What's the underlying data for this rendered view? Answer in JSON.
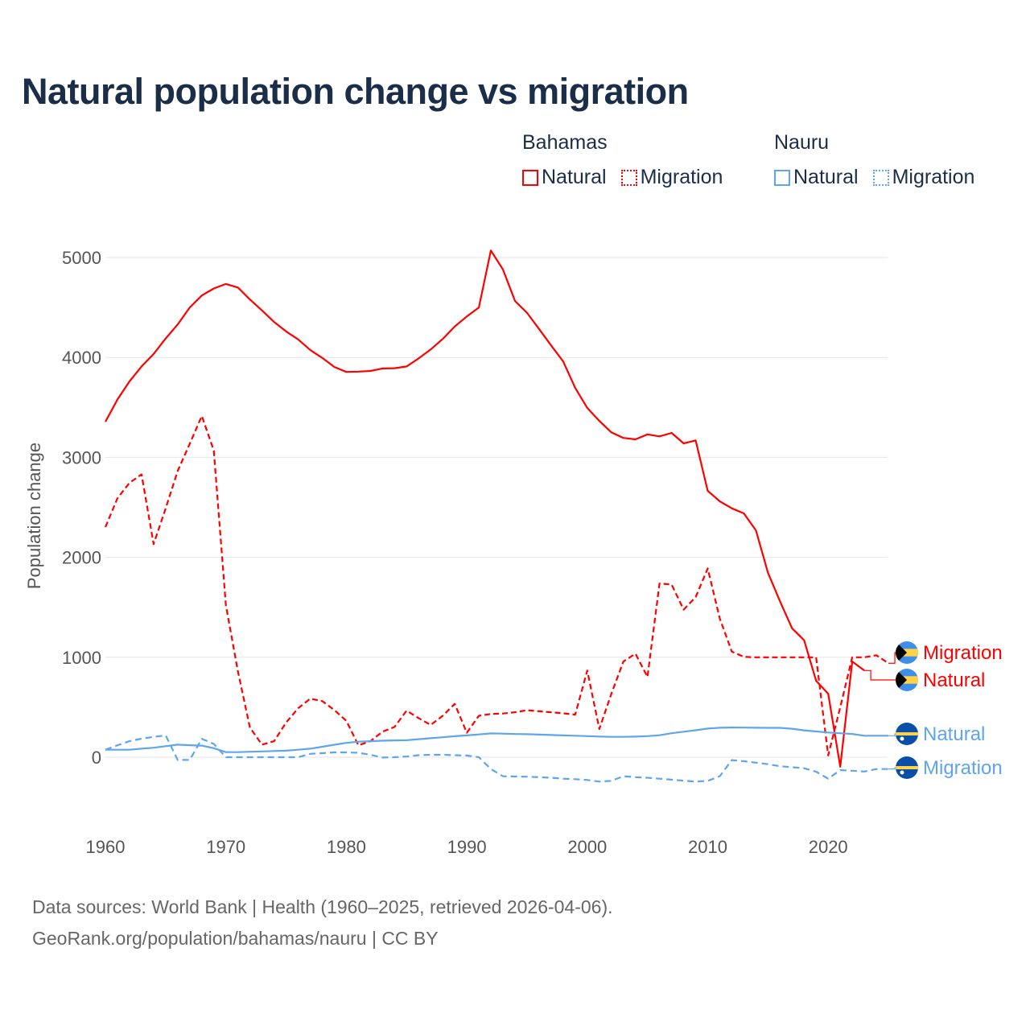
{
  "title": "Natural population change vs migration",
  "legend": {
    "groups": [
      {
        "country": "Bahamas",
        "color": "#ff0000",
        "items": [
          "Natural",
          "Migration"
        ]
      },
      {
        "country": "Nauru",
        "color": "#5ea5ec",
        "items": [
          "Natural",
          "Migration"
        ]
      }
    ]
  },
  "source": {
    "line1": "Data sources: World Bank | Health (1960–2025, retrieved 2026-04-06).",
    "line2": "GeoRank.org/population/bahamas/nauru | CC BY"
  },
  "chart_data": {
    "type": "line",
    "title": "Natural population change vs migration",
    "xlabel": "",
    "ylabel": "Population change",
    "xlim": [
      1960,
      2025
    ],
    "ylim": [
      -400,
      5150
    ],
    "yticks": [
      0,
      1000,
      2000,
      3000,
      4000,
      5000
    ],
    "xticks": [
      1960,
      1970,
      1980,
      1990,
      2000,
      2010,
      2020
    ],
    "grid": true,
    "legend_position": "top-right",
    "x": [
      1960,
      1961,
      1962,
      1963,
      1964,
      1965,
      1966,
      1967,
      1968,
      1969,
      1970,
      1971,
      1972,
      1973,
      1974,
      1975,
      1976,
      1977,
      1978,
      1979,
      1980,
      1981,
      1982,
      1983,
      1984,
      1985,
      1986,
      1987,
      1988,
      1989,
      1990,
      1991,
      1992,
      1993,
      1994,
      1995,
      1996,
      1997,
      1998,
      1999,
      2000,
      2001,
      2002,
      2003,
      2004,
      2005,
      2006,
      2007,
      2008,
      2009,
      2010,
      2011,
      2012,
      2013,
      2014,
      2015,
      2016,
      2017,
      2018,
      2019,
      2020,
      2021,
      2022,
      2023,
      2024,
      2025
    ],
    "series": [
      {
        "name": "Bahamas Natural",
        "country": "Bahamas",
        "kind": "Natural",
        "color": "#ff0000",
        "dash": "solid",
        "end_label": "Natural",
        "values": [
          3357,
          3580,
          3760,
          3910,
          4035,
          4190,
          4330,
          4500,
          4620,
          4690,
          4735,
          4700,
          4580,
          4470,
          4355,
          4260,
          4180,
          4075,
          3995,
          3905,
          3855,
          3858,
          3865,
          3890,
          3892,
          3910,
          3990,
          4080,
          4185,
          4310,
          4410,
          4500,
          5070,
          4880,
          4565,
          4445,
          4285,
          4120,
          3960,
          3695,
          3495,
          3365,
          3250,
          3195,
          3180,
          3230,
          3210,
          3245,
          3140,
          3170,
          2665,
          2560,
          2490,
          2440,
          2270,
          1845,
          1560,
          1290,
          1170,
          765,
          635,
          -95,
          957,
          867,
          null,
          null
        ]
      },
      {
        "name": "Bahamas Migration",
        "country": "Bahamas",
        "kind": "Migration",
        "color": "#ff0000",
        "dash": "dashed",
        "end_label": "Migration",
        "values": [
          2303,
          2592,
          2745,
          2830,
          2133,
          2490,
          2864,
          3136,
          3415,
          3068,
          1520,
          857,
          296,
          126,
          160,
          347,
          490,
          585,
          561,
          473,
          364,
          119,
          160,
          255,
          303,
          466,
          391,
          323,
          415,
          534,
          245,
          415,
          432,
          437,
          450,
          470,
          460,
          450,
          440,
          426,
          867,
          283,
          634,
          957,
          1036,
          803,
          1738,
          1728,
          1477,
          1602,
          1889,
          1387,
          1057,
          1004,
          1000,
          1000,
          1000,
          1000,
          1000,
          1000,
          18,
          500,
          1000,
          1000,
          1020,
          940
        ]
      },
      {
        "name": "Nauru Natural",
        "country": "Nauru",
        "kind": "Natural",
        "color": "#5ea5ec",
        "dash": "solid",
        "end_label": "Natural",
        "values": [
          75,
          75,
          75,
          85,
          95,
          110,
          126,
          120,
          116,
          90,
          51,
          51,
          55,
          58,
          62,
          65,
          75,
          85,
          105,
          125,
          143,
          155,
          160,
          165,
          168,
          170,
          180,
          190,
          200,
          210,
          218,
          228,
          238,
          236,
          232,
          230,
          226,
          222,
          218,
          215,
          211,
          207,
          204,
          204,
          206,
          211,
          220,
          240,
          255,
          270,
          287,
          295,
          297,
          296,
          295,
          294,
          294,
          285,
          269,
          258,
          247,
          240,
          233,
          215,
          215,
          215
        ]
      },
      {
        "name": "Nauru Migration",
        "country": "Nauru",
        "kind": "Migration",
        "color": "#5ea5ec",
        "dash": "dashed",
        "end_label": "Migration",
        "values": [
          75,
          119,
          160,
          185,
          204,
          218,
          -27,
          -27,
          184,
          133,
          0,
          0,
          0,
          0,
          0,
          0,
          0,
          34,
          40,
          48,
          48,
          44,
          24,
          -3,
          0,
          7,
          20,
          24,
          24,
          20,
          17,
          0,
          -118,
          -190,
          -193,
          -195,
          -200,
          -205,
          -215,
          -220,
          -228,
          -244,
          -237,
          -190,
          -200,
          -205,
          -215,
          -225,
          -235,
          -244,
          -237,
          -190,
          -29,
          -40,
          -55,
          -70,
          -90,
          -100,
          -110,
          -145,
          -215,
          -129,
          -135,
          -143,
          -118,
          -118
        ]
      }
    ]
  }
}
